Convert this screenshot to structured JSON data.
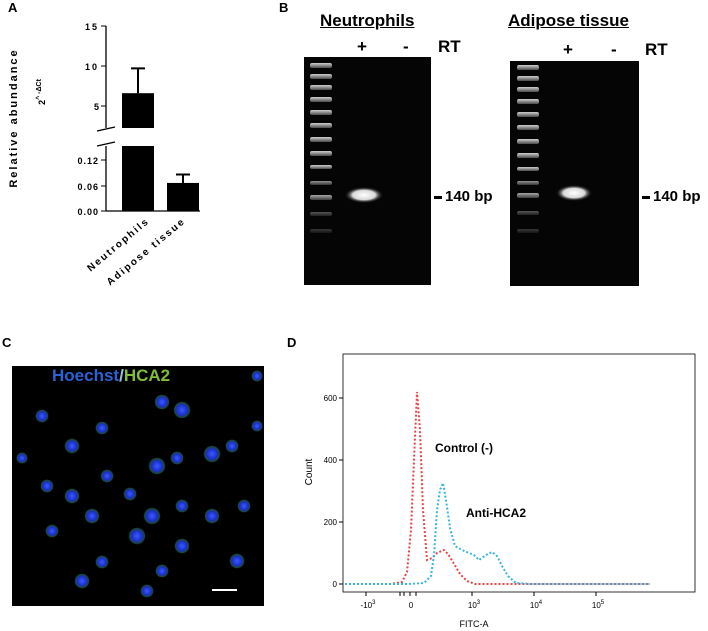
{
  "panels": {
    "a": {
      "letter": "A",
      "y_label": "Relative abundance",
      "y_sublabel": "2^-ΔCt",
      "upper_ticks": [
        "15",
        "10",
        "5"
      ],
      "lower_ticks": [
        "0.12",
        "0.06",
        "0.00"
      ],
      "categories": [
        "Neutrophils",
        "Adipose tissue"
      ]
    },
    "b": {
      "letter": "B",
      "gels": [
        {
          "title": "Neutrophils",
          "plus": "+",
          "minus": "-",
          "rt": "RT",
          "band_label": "140 bp"
        },
        {
          "title": "Adipose tissue",
          "plus": "+",
          "minus": "-",
          "rt": "RT",
          "band_label": "140 bp"
        }
      ]
    },
    "c": {
      "letter": "C",
      "stain1": "Hoechst",
      "separator": "/",
      "stain2": "HCA2",
      "colors": {
        "hoechst": "#2b62d6",
        "hca2": "#7dbf3d"
      }
    },
    "d": {
      "letter": "D",
      "y_label": "Count",
      "x_label": "FITC-A",
      "annotations": {
        "control": "Control (-)",
        "anti": "Anti-HCA2"
      },
      "colors": {
        "control": "#e8454a",
        "anti": "#35b6e0"
      }
    }
  },
  "chart_data": [
    {
      "type": "bar",
      "categories": [
        "Neutrophils",
        "Adipose tissue"
      ],
      "values": [
        6.6,
        0.066
      ],
      "errors": [
        3.1,
        0.02
      ],
      "ylabel": "Relative abundance",
      "y_sublabel": "2^-ΔCt",
      "y_axis_break": {
        "lower_range": [
          0,
          0.15
        ],
        "upper_range": [
          3.5,
          15
        ]
      },
      "upper_ticks": [
        5,
        10,
        15
      ],
      "lower_ticks": [
        0.0,
        0.06,
        0.12
      ]
    },
    {
      "type": "line",
      "xlabel": "FITC-A",
      "ylabel": "Count",
      "x_scale": "biexponential",
      "x_tick_labels": [
        "-10^3",
        "0",
        "10^3",
        "10^4",
        "10^5"
      ],
      "yticks": [
        0,
        200,
        400,
        600
      ],
      "ylim": [
        0,
        650
      ],
      "series": [
        {
          "name": "Control (-)",
          "x": [
            "-10^3",
            "-200",
            "0",
            "100",
            "200",
            "300",
            "400",
            "600",
            "700",
            "900",
            "1000",
            "1300",
            "2000"
          ],
          "y": [
            0,
            0,
            10,
            150,
            610,
            150,
            95,
            110,
            100,
            50,
            20,
            5,
            0
          ]
        },
        {
          "name": "Anti-HCA2",
          "x": [
            "-10^3",
            "0",
            "200",
            "300",
            "400",
            "500",
            "600",
            "700",
            "900",
            "1000",
            "1500",
            "2000",
            "3000"
          ],
          "y": [
            0,
            0,
            20,
            110,
            230,
            320,
            200,
            110,
            90,
            80,
            100,
            50,
            0
          ]
        }
      ]
    }
  ]
}
